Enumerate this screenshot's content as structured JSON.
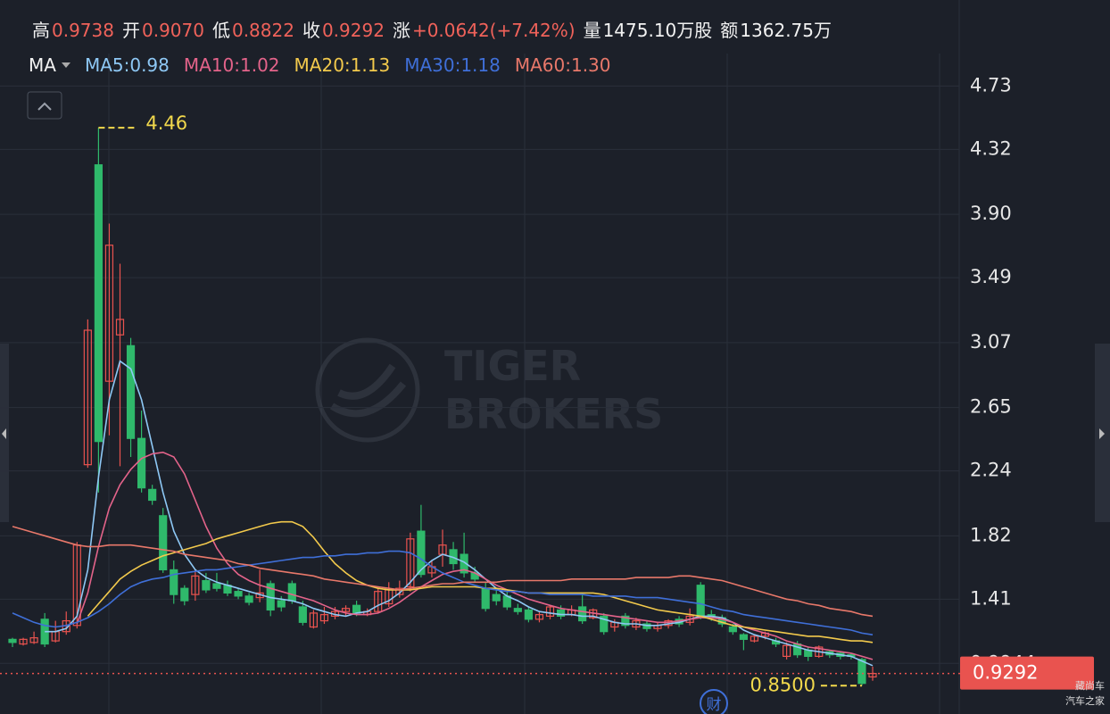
{
  "header": [
    {
      "label": "高",
      "value": "0.9738"
    },
    {
      "label": "开",
      "value": "0.9070"
    },
    {
      "label": "低",
      "value": "0.8822"
    },
    {
      "label": "收",
      "value": "0.9292"
    },
    {
      "label": "涨",
      "value": "+0.0642(+7.42%)"
    },
    {
      "label": "量",
      "value": "1475.10万股"
    },
    {
      "label": "额",
      "value": "1362.75万"
    }
  ],
  "indicator": "MA",
  "watermark": [
    "TIGER",
    "BROKERS"
  ],
  "event_marker": "财",
  "corner_watermark": [
    "藏尚车",
    "汽车之家"
  ],
  "chart_data": {
    "type": "candlestick",
    "up_color": "#e9534f",
    "down_color": "#2fb96b",
    "ylim": [
      0.667,
      4.94
    ],
    "yticks": [
      4.73,
      4.32,
      {
        "value": 3.9,
        "label": "3.90"
      },
      3.49,
      3.07,
      2.65,
      2.24,
      1.82,
      1.41,
      0.9944
    ],
    "grid": true,
    "annotations": {
      "high": "4.46",
      "low": "0.8500"
    },
    "categories": [
      null,
      null,
      null,
      null,
      null,
      null,
      null,
      null,
      null,
      null,
      null,
      null,
      null,
      null,
      null,
      null,
      null,
      null,
      null,
      null,
      null,
      null,
      null,
      null,
      null,
      null,
      null,
      null,
      null,
      null,
      null,
      null,
      null,
      null,
      null,
      null,
      null,
      null,
      null,
      null,
      null,
      null,
      null,
      null,
      null,
      null,
      null,
      null,
      null,
      null,
      null,
      null,
      null,
      null,
      null,
      null,
      null,
      null,
      null,
      null,
      null,
      null,
      null,
      null,
      null,
      null,
      null,
      null,
      null,
      null,
      null,
      null,
      null,
      null,
      null,
      null,
      null,
      null,
      null,
      null,
      null
    ],
    "ohlc": [
      [
        1.15,
        1.16,
        1.1,
        1.13
      ],
      [
        1.12,
        1.16,
        1.11,
        1.15
      ],
      [
        1.13,
        1.2,
        1.12,
        1.16
      ],
      [
        1.28,
        1.32,
        1.1,
        1.12
      ],
      [
        1.14,
        1.27,
        1.13,
        1.2
      ],
      [
        1.2,
        1.33,
        1.18,
        1.27
      ],
      [
        1.24,
        1.78,
        1.22,
        1.76
      ],
      [
        2.28,
        3.22,
        2.26,
        3.15
      ],
      [
        4.22,
        4.46,
        2.1,
        2.43
      ],
      [
        2.82,
        3.84,
        2.47,
        3.7
      ],
      [
        3.12,
        3.58,
        2.27,
        3.22
      ],
      [
        3.05,
        3.1,
        2.33,
        2.45
      ],
      [
        2.45,
        2.63,
        2.1,
        2.13
      ],
      [
        2.12,
        2.15,
        2.02,
        2.05
      ],
      [
        1.95,
        2.0,
        1.58,
        1.6
      ],
      [
        1.6,
        1.66,
        1.38,
        1.44
      ],
      [
        1.48,
        1.5,
        1.37,
        1.4
      ],
      [
        1.44,
        1.6,
        1.4,
        1.56
      ],
      [
        1.53,
        1.58,
        1.45,
        1.47
      ],
      [
        1.51,
        1.58,
        1.46,
        1.48
      ],
      [
        1.5,
        1.53,
        1.43,
        1.45
      ],
      [
        1.46,
        1.48,
        1.41,
        1.43
      ],
      [
        1.43,
        1.45,
        1.37,
        1.39
      ],
      [
        1.42,
        1.6,
        1.39,
        1.45
      ],
      [
        1.51,
        1.53,
        1.3,
        1.34
      ],
      [
        1.4,
        1.43,
        1.33,
        1.36
      ],
      [
        1.51,
        1.53,
        1.38,
        1.4
      ],
      [
        1.36,
        1.4,
        1.24,
        1.26
      ],
      [
        1.23,
        1.34,
        1.22,
        1.32
      ],
      [
        1.27,
        1.36,
        1.25,
        1.31
      ],
      [
        1.3,
        1.36,
        1.28,
        1.33
      ],
      [
        1.33,
        1.37,
        1.3,
        1.35
      ],
      [
        1.37,
        1.4,
        1.3,
        1.32
      ],
      [
        1.31,
        1.35,
        1.3,
        1.33
      ],
      [
        1.33,
        1.48,
        1.32,
        1.46
      ],
      [
        1.38,
        1.52,
        1.36,
        1.47
      ],
      [
        1.44,
        1.53,
        1.42,
        1.48
      ],
      [
        1.49,
        1.84,
        1.46,
        1.8
      ],
      [
        1.85,
        2.02,
        1.55,
        1.57
      ],
      [
        1.58,
        1.66,
        1.55,
        1.62
      ],
      [
        1.7,
        1.86,
        1.62,
        1.76
      ],
      [
        1.73,
        1.78,
        1.6,
        1.64
      ],
      [
        1.7,
        1.84,
        1.55,
        1.58
      ],
      [
        1.58,
        1.62,
        1.52,
        1.54
      ],
      [
        1.48,
        1.52,
        1.33,
        1.35
      ],
      [
        1.44,
        1.47,
        1.37,
        1.4
      ],
      [
        1.43,
        1.46,
        1.34,
        1.36
      ],
      [
        1.35,
        1.38,
        1.31,
        1.33
      ],
      [
        1.34,
        1.36,
        1.26,
        1.28
      ],
      [
        1.28,
        1.33,
        1.26,
        1.31
      ],
      [
        1.3,
        1.37,
        1.28,
        1.36
      ],
      [
        1.34,
        1.37,
        1.28,
        1.3
      ],
      [
        1.31,
        1.37,
        1.3,
        1.34
      ],
      [
        1.36,
        1.45,
        1.25,
        1.27
      ],
      [
        1.29,
        1.35,
        1.28,
        1.34
      ],
      [
        1.3,
        1.32,
        1.18,
        1.2
      ],
      [
        1.23,
        1.28,
        1.2,
        1.26
      ],
      [
        1.3,
        1.32,
        1.22,
        1.24
      ],
      [
        1.23,
        1.29,
        1.21,
        1.27
      ],
      [
        1.25,
        1.27,
        1.2,
        1.22
      ],
      [
        1.22,
        1.26,
        1.2,
        1.24
      ],
      [
        1.24,
        1.28,
        1.22,
        1.27
      ],
      [
        1.28,
        1.3,
        1.23,
        1.25
      ],
      [
        1.26,
        1.35,
        1.24,
        1.3
      ],
      [
        1.5,
        1.52,
        1.28,
        1.3
      ],
      [
        1.31,
        1.34,
        1.27,
        1.29
      ],
      [
        1.29,
        1.31,
        1.23,
        1.25
      ],
      [
        1.23,
        1.25,
        1.18,
        1.2
      ],
      [
        1.18,
        1.19,
        1.08,
        1.15
      ],
      [
        1.14,
        1.18,
        1.13,
        1.17
      ],
      [
        1.17,
        1.2,
        1.15,
        1.19
      ],
      [
        1.14,
        1.16,
        1.1,
        1.12
      ],
      [
        1.04,
        1.13,
        1.02,
        1.11
      ],
      [
        1.12,
        1.14,
        1.03,
        1.05
      ],
      [
        1.08,
        1.1,
        1.01,
        1.04
      ],
      [
        1.04,
        1.11,
        1.03,
        1.1
      ],
      [
        1.07,
        1.08,
        1.03,
        1.05
      ],
      [
        1.06,
        1.07,
        1.02,
        1.04
      ],
      [
        1.05,
        1.06,
        1.02,
        1.04
      ],
      [
        1.02,
        1.03,
        0.85,
        0.865
      ],
      [
        0.907,
        0.9738,
        0.8822,
        0.9292
      ]
    ],
    "series": [
      {
        "name": "MA5:0.98",
        "color": "#8ec8f5",
        "values": [
          null,
          null,
          null,
          1.2,
          1.2,
          1.22,
          1.3,
          1.6,
          2.2,
          2.7,
          2.95,
          2.9,
          2.7,
          2.4,
          2.1,
          1.85,
          1.7,
          1.6,
          1.55,
          1.52,
          1.5,
          1.48,
          1.46,
          1.44,
          1.42,
          1.41,
          1.4,
          1.38,
          1.35,
          1.33,
          1.31,
          1.3,
          1.32,
          1.33,
          1.37,
          1.4,
          1.45,
          1.52,
          1.6,
          1.66,
          1.7,
          1.68,
          1.65,
          1.6,
          1.54,
          1.48,
          1.43,
          1.4,
          1.36,
          1.33,
          1.32,
          1.31,
          1.31,
          1.3,
          1.3,
          1.28,
          1.26,
          1.25,
          1.25,
          1.24,
          1.24,
          1.25,
          1.26,
          1.28,
          1.3,
          1.3,
          1.29,
          1.26,
          1.21,
          1.18,
          1.16,
          1.14,
          1.12,
          1.1,
          1.08,
          1.07,
          1.06,
          1.05,
          1.04,
          1.01,
          0.98
        ]
      },
      {
        "name": "MA10:1.02",
        "color": "#e3638a",
        "values": [
          null,
          null,
          null,
          null,
          null,
          null,
          1.25,
          1.45,
          1.75,
          2.0,
          2.15,
          2.25,
          2.32,
          2.35,
          2.36,
          2.33,
          2.22,
          2.05,
          1.88,
          1.74,
          1.64,
          1.57,
          1.53,
          1.5,
          1.48,
          1.46,
          1.44,
          1.42,
          1.4,
          1.37,
          1.34,
          1.32,
          1.31,
          1.31,
          1.32,
          1.35,
          1.39,
          1.44,
          1.49,
          1.53,
          1.57,
          1.59,
          1.6,
          1.58,
          1.54,
          1.5,
          1.47,
          1.44,
          1.41,
          1.39,
          1.37,
          1.35,
          1.34,
          1.33,
          1.32,
          1.31,
          1.3,
          1.29,
          1.28,
          1.27,
          1.26,
          1.26,
          1.27,
          1.28,
          1.29,
          1.29,
          1.28,
          1.26,
          1.23,
          1.21,
          1.19,
          1.17,
          1.14,
          1.12,
          1.1,
          1.09,
          1.08,
          1.07,
          1.06,
          1.04,
          1.02
        ]
      },
      {
        "name": "MA20:1.13",
        "color": "#f2c94c",
        "values": [
          null,
          null,
          null,
          null,
          null,
          null,
          null,
          1.3,
          1.38,
          1.46,
          1.54,
          1.59,
          1.63,
          1.66,
          1.69,
          1.71,
          1.73,
          1.75,
          1.77,
          1.8,
          1.82,
          1.84,
          1.86,
          1.88,
          1.9,
          1.91,
          1.91,
          1.88,
          1.81,
          1.72,
          1.64,
          1.58,
          1.53,
          1.5,
          1.48,
          1.47,
          1.47,
          1.47,
          1.48,
          1.49,
          1.49,
          1.49,
          1.49,
          1.49,
          1.48,
          1.48,
          1.47,
          1.46,
          1.45,
          1.45,
          1.45,
          1.45,
          1.45,
          1.45,
          1.45,
          1.44,
          1.42,
          1.4,
          1.38,
          1.36,
          1.34,
          1.33,
          1.32,
          1.31,
          1.3,
          1.28,
          1.26,
          1.24,
          1.23,
          1.22,
          1.21,
          1.2,
          1.19,
          1.18,
          1.17,
          1.17,
          1.16,
          1.15,
          1.14,
          1.14,
          1.13
        ]
      },
      {
        "name": "MA30:1.18",
        "color": "#3f6fd8",
        "values": [
          1.32,
          1.29,
          1.26,
          1.24,
          1.23,
          1.24,
          1.26,
          1.29,
          1.33,
          1.38,
          1.44,
          1.49,
          1.52,
          1.54,
          1.55,
          1.57,
          1.58,
          1.59,
          1.6,
          1.6,
          1.61,
          1.62,
          1.63,
          1.64,
          1.65,
          1.66,
          1.67,
          1.68,
          1.68,
          1.69,
          1.69,
          1.7,
          1.7,
          1.71,
          1.71,
          1.72,
          1.72,
          1.71,
          1.67,
          1.62,
          1.58,
          1.55,
          1.52,
          1.5,
          1.48,
          1.47,
          1.46,
          1.46,
          1.45,
          1.45,
          1.44,
          1.44,
          1.44,
          1.44,
          1.43,
          1.43,
          1.43,
          1.43,
          1.42,
          1.42,
          1.42,
          1.41,
          1.4,
          1.39,
          1.38,
          1.36,
          1.34,
          1.33,
          1.31,
          1.3,
          1.29,
          1.28,
          1.27,
          1.26,
          1.25,
          1.24,
          1.23,
          1.22,
          1.21,
          1.19,
          1.18
        ]
      },
      {
        "name": "MA60:1.30",
        "color": "#e8786a",
        "values": [
          1.88,
          1.86,
          1.84,
          1.82,
          1.8,
          1.78,
          1.76,
          1.75,
          1.75,
          1.76,
          1.76,
          1.76,
          1.75,
          1.74,
          1.73,
          1.72,
          1.7,
          1.69,
          1.68,
          1.67,
          1.66,
          1.64,
          1.63,
          1.61,
          1.6,
          1.59,
          1.58,
          1.57,
          1.56,
          1.54,
          1.53,
          1.52,
          1.51,
          1.5,
          1.49,
          1.48,
          1.47,
          1.48,
          1.49,
          1.5,
          1.51,
          1.51,
          1.52,
          1.52,
          1.52,
          1.52,
          1.53,
          1.53,
          1.53,
          1.53,
          1.53,
          1.53,
          1.54,
          1.54,
          1.54,
          1.54,
          1.54,
          1.54,
          1.55,
          1.55,
          1.55,
          1.55,
          1.56,
          1.56,
          1.55,
          1.54,
          1.53,
          1.51,
          1.49,
          1.47,
          1.45,
          1.43,
          1.41,
          1.4,
          1.38,
          1.37,
          1.35,
          1.34,
          1.33,
          1.31,
          1.3
        ]
      }
    ]
  }
}
